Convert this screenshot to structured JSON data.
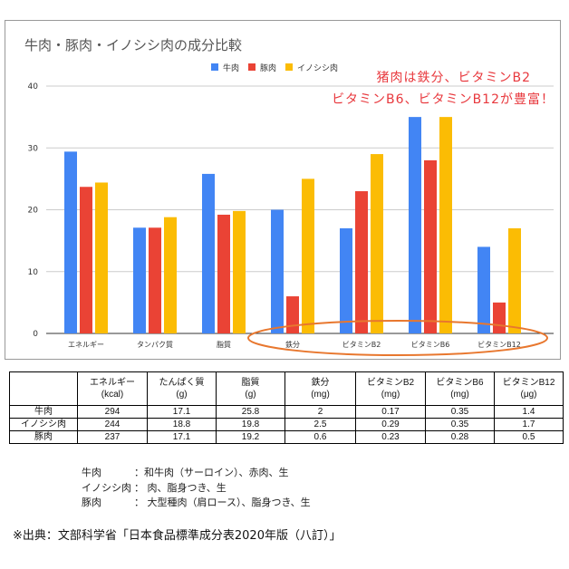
{
  "chart_data": {
    "type": "bar",
    "title": "牛肉・豚肉・イノシシ肉の成分比較",
    "categories": [
      "エネルギー",
      "タンパク質",
      "脂質",
      "鉄分",
      "ビタミンB2",
      "ビタミンB6",
      "ビタミンB12"
    ],
    "series": [
      {
        "name": "牛肉",
        "color": "#4285f4",
        "values": [
          29.4,
          17.1,
          25.8,
          20,
          17,
          35,
          14
        ]
      },
      {
        "name": "豚肉",
        "color": "#ea4335",
        "values": [
          23.7,
          17.1,
          19.2,
          6,
          23,
          28,
          5
        ]
      },
      {
        "name": "イノシシ肉",
        "color": "#fbbc04",
        "values": [
          24.4,
          18.8,
          19.8,
          25,
          29,
          35,
          17
        ]
      }
    ],
    "ylim": [
      0,
      40
    ],
    "yticks": [
      "0",
      "10",
      "20",
      "30",
      "40"
    ],
    "grid": true,
    "legend": "top",
    "annotation": [
      "猪肉は鉄分、ビタミンB2",
      "ビタミンB6、ビタミンB12が豊富！"
    ],
    "annotation_color": "#e8383d",
    "highlight_color": "#e8772e"
  },
  "table": {
    "headers": [
      [
        "",
        ""
      ],
      [
        "エネルギー",
        "(kcal)"
      ],
      [
        "たんぱく質",
        "(g)"
      ],
      [
        "脂質",
        "(g)"
      ],
      [
        "鉄分",
        "(mg)"
      ],
      [
        "ビタミンB2",
        "(mg)"
      ],
      [
        "ビタミンB6",
        "(mg)"
      ],
      [
        "ビタミンB12",
        "(μg)"
      ]
    ],
    "rows": [
      [
        "牛肉",
        "294",
        "17.1",
        "25.8",
        "2",
        "0.17",
        "0.35",
        "1.4"
      ],
      [
        "イノシシ肉",
        "244",
        "18.8",
        "19.8",
        "2.5",
        "0.29",
        "0.35",
        "1.7"
      ],
      [
        "豚肉",
        "237",
        "17.1",
        "19.2",
        "0.6",
        "0.23",
        "0.28",
        "0.5"
      ]
    ]
  },
  "notes": [
    {
      "label": "牛肉",
      "text": "：和牛肉（サーロイン）、赤肉、生"
    },
    {
      "label": "イノシシ肉",
      "text": "： 肉、脂身つき、生"
    },
    {
      "label": "豚肉",
      "text": "： 大型種肉（肩ロース）、脂身つき、生"
    }
  ],
  "source": "※出典：文部科学省「日本食品標準成分表2020年版（八訂）」"
}
